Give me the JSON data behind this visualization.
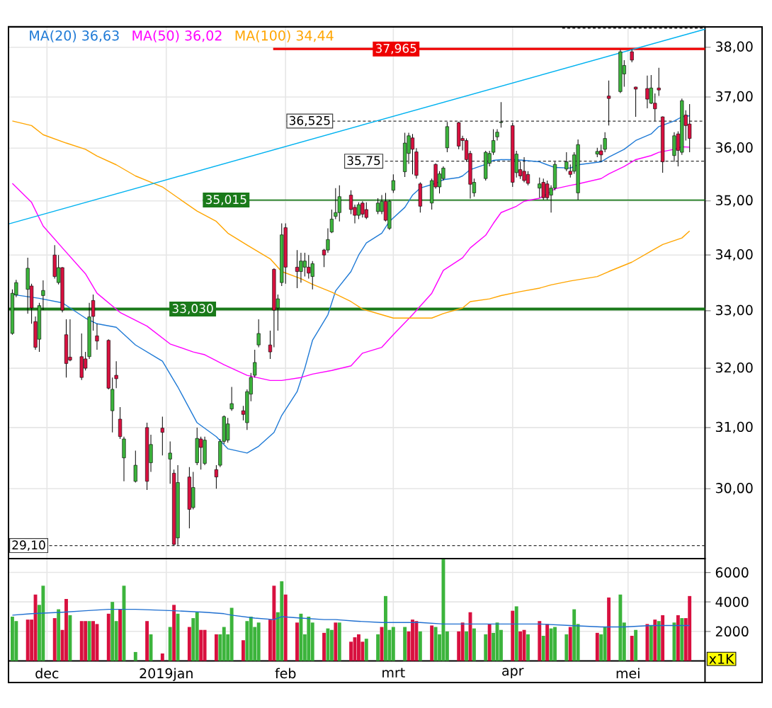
{
  "chart_data": [
    {
      "type": "candlestick",
      "x": [
        "2018-11-22",
        "2018-11-23",
        "2018-11-26",
        "2018-11-27",
        "2018-11-28",
        "2018-11-29",
        "2018-11-30",
        "2018-12-03",
        "2018-12-04",
        "2018-12-05",
        "2018-12-06",
        "2018-12-07",
        "2018-12-10",
        "2018-12-11",
        "2018-12-12",
        "2018-12-13",
        "2018-12-14",
        "2018-12-17",
        "2018-12-18",
        "2018-12-19",
        "2018-12-20",
        "2018-12-21",
        "2018-12-24",
        "2018-12-27",
        "2018-12-28",
        "2018-12-31",
        "2019-01-02",
        "2019-01-03",
        "2019-01-04",
        "2019-01-07",
        "2019-01-08",
        "2019-01-09",
        "2019-01-10",
        "2019-01-11",
        "2019-01-14",
        "2019-01-15",
        "2019-01-16",
        "2019-01-17",
        "2019-01-18",
        "2019-01-21",
        "2019-01-22",
        "2019-01-23",
        "2019-01-24",
        "2019-01-25",
        "2019-01-28",
        "2019-01-29",
        "2019-01-30",
        "2019-01-31",
        "2019-02-01",
        "2019-02-04",
        "2019-02-05",
        "2019-02-06",
        "2019-02-07",
        "2019-02-08",
        "2019-02-11",
        "2019-02-12",
        "2019-02-13",
        "2019-02-14",
        "2019-02-15",
        "2019-02-18",
        "2019-02-19",
        "2019-02-20",
        "2019-02-21",
        "2019-02-22",
        "2019-02-25",
        "2019-02-26",
        "2019-02-27",
        "2019-02-28",
        "2019-03-01",
        "2019-03-04",
        "2019-03-05",
        "2019-03-06",
        "2019-03-07",
        "2019-03-08",
        "2019-03-11",
        "2019-03-12",
        "2019-03-13",
        "2019-03-14",
        "2019-03-15",
        "2019-03-18",
        "2019-03-19",
        "2019-03-20",
        "2019-03-21",
        "2019-03-22",
        "2019-03-25",
        "2019-03-26",
        "2019-03-27",
        "2019-03-28",
        "2019-03-29",
        "2019-04-01",
        "2019-04-02",
        "2019-04-03",
        "2019-04-04",
        "2019-04-05",
        "2019-04-08",
        "2019-04-09",
        "2019-04-10",
        "2019-04-11",
        "2019-04-12",
        "2019-04-15",
        "2019-04-16",
        "2019-04-17",
        "2019-04-18",
        "2019-04-23",
        "2019-04-24",
        "2019-04-25",
        "2019-04-26",
        "2019-04-29",
        "2019-04-30",
        "2019-05-02",
        "2019-05-03",
        "2019-05-06",
        "2019-05-07",
        "2019-05-08",
        "2019-05-09",
        "2019-05-10",
        "2019-05-13",
        "2019-05-14",
        "2019-05-15",
        "2019-05-16",
        "2019-05-17"
      ],
      "ohlc": [
        [
          32.6,
          33.38,
          32.58,
          33.31
        ],
        [
          33.28,
          33.55,
          33.24,
          33.5
        ],
        [
          33.38,
          33.95,
          32.95,
          33.76
        ],
        [
          33.44,
          33.48,
          32.77,
          33.05
        ],
        [
          32.81,
          32.9,
          32.32,
          32.36
        ],
        [
          32.5,
          33.14,
          32.28,
          33.09
        ],
        [
          33.27,
          33.54,
          33.01,
          33.36
        ],
        [
          34.0,
          34.18,
          33.57,
          33.61
        ],
        [
          33.5,
          34.0,
          33.47,
          33.77
        ],
        [
          33.77,
          33.78,
          32.97,
          33.01
        ],
        [
          32.58,
          32.85,
          31.84,
          32.08
        ],
        [
          32.19,
          32.85,
          32.12,
          32.14
        ],
        [
          32.2,
          32.6,
          31.8,
          31.84
        ],
        [
          32.16,
          32.28,
          31.96,
          32.0
        ],
        [
          32.2,
          33.14,
          32.16,
          32.89
        ],
        [
          33.18,
          33.29,
          32.65,
          32.9
        ],
        [
          32.56,
          32.77,
          32.32,
          32.47
        ],
        [
          32.48,
          32.5,
          31.64,
          31.66
        ],
        [
          31.28,
          31.84,
          30.92,
          31.64
        ],
        [
          31.88,
          32.12,
          31.66,
          31.82
        ],
        [
          31.14,
          31.34,
          30.81,
          30.85
        ],
        [
          30.5,
          30.85,
          30.12,
          30.81
        ],
        [
          30.12,
          30.62,
          30.1,
          30.38
        ],
        [
          31.0,
          31.08,
          29.98,
          30.12
        ],
        [
          30.42,
          30.88,
          30.27,
          30.72
        ],
        [
          30.99,
          31.18,
          30.54,
          30.92
        ],
        [
          30.48,
          30.77,
          30.08,
          30.58
        ],
        [
          30.25,
          30.31,
          29.1,
          29.12
        ],
        [
          29.22,
          30.38,
          29.11,
          30.1
        ],
        [
          30.19,
          30.35,
          29.37,
          29.67
        ],
        [
          29.7,
          30.27,
          29.67,
          30.02
        ],
        [
          30.42,
          31.0,
          30.38,
          30.82
        ],
        [
          30.81,
          30.85,
          30.31,
          30.67
        ],
        [
          30.41,
          30.85,
          30.38,
          30.79
        ],
        [
          30.31,
          30.38,
          30.0,
          30.19
        ],
        [
          30.38,
          30.81,
          30.35,
          30.77
        ],
        [
          30.77,
          31.2,
          30.73,
          31.18
        ],
        [
          30.79,
          31.16,
          30.75,
          31.06
        ],
        [
          31.31,
          31.68,
          31.28,
          31.4
        ],
        [
          31.28,
          31.36,
          31.12,
          31.22
        ],
        [
          31.08,
          31.64,
          30.96,
          31.6
        ],
        [
          31.56,
          31.92,
          31.44,
          31.84
        ],
        [
          31.88,
          32.32,
          31.84,
          32.1
        ],
        [
          32.4,
          32.85,
          32.36,
          32.6
        ],
        [
          32.4,
          32.65,
          32.16,
          32.28
        ],
        [
          33.74,
          33.76,
          32.36,
          33.01
        ],
        [
          33.05,
          33.29,
          32.65,
          33.21
        ],
        [
          33.5,
          34.58,
          33.44,
          34.37
        ],
        [
          34.5,
          34.58,
          33.48,
          33.78
        ],
        [
          33.78,
          34.09,
          33.4,
          33.7
        ],
        [
          33.7,
          34.04,
          33.5,
          33.89
        ],
        [
          33.78,
          34.04,
          33.61,
          33.89
        ],
        [
          33.78,
          34.0,
          33.57,
          33.67
        ],
        [
          33.61,
          33.89,
          33.38,
          33.84
        ],
        [
          34.09,
          34.11,
          33.78,
          34.0
        ],
        [
          34.09,
          34.49,
          34.04,
          34.28
        ],
        [
          34.42,
          34.84,
          34.4,
          34.66
        ],
        [
          34.71,
          35.24,
          34.66,
          34.78
        ],
        [
          34.78,
          35.29,
          34.62,
          35.08
        ],
        [
          35.11,
          35.2,
          34.75,
          34.84
        ],
        [
          34.88,
          34.93,
          34.58,
          34.73
        ],
        [
          34.73,
          34.97,
          34.66,
          34.93
        ],
        [
          34.96,
          34.99,
          34.69,
          34.75
        ],
        [
          34.84,
          34.97,
          34.66,
          34.69
        ],
        [
          34.8,
          35.05,
          34.75,
          34.96
        ],
        [
          34.8,
          35.11,
          34.75,
          34.99
        ],
        [
          34.99,
          35.15,
          34.62,
          34.64
        ],
        [
          34.49,
          35.02,
          34.46,
          34.99
        ],
        [
          35.2,
          35.5,
          35.15,
          35.38
        ],
        [
          35.55,
          36.3,
          35.45,
          36.1
        ],
        [
          35.9,
          36.3,
          35.7,
          36.24
        ],
        [
          36.2,
          36.28,
          35.5,
          35.98
        ],
        [
          35.93,
          36.0,
          35.42,
          35.48
        ],
        [
          35.32,
          35.35,
          34.78,
          34.9
        ],
        [
          34.96,
          35.42,
          34.84,
          35.38
        ],
        [
          35.69,
          35.71,
          35.23,
          35.26
        ],
        [
          35.26,
          35.56,
          35.14,
          35.51
        ],
        [
          35.42,
          35.65,
          35.38,
          35.62
        ],
        [
          36.01,
          36.51,
          35.92,
          36.42
        ],
        [
          36.5,
          36.52,
          35.98,
          36.04
        ],
        [
          36.19,
          36.24,
          35.96,
          36.15
        ],
        [
          36.15,
          36.19,
          35.74,
          35.78
        ],
        [
          35.9,
          35.95,
          35.04,
          35.31
        ],
        [
          35.15,
          35.42,
          35.08,
          35.35
        ],
        [
          35.42,
          35.95,
          35.38,
          35.92
        ],
        [
          35.71,
          35.95,
          35.65,
          35.9
        ],
        [
          35.92,
          36.37,
          35.87,
          36.15
        ],
        [
          36.22,
          36.37,
          36.15,
          36.31
        ],
        [
          36.5,
          36.9,
          36.4,
          36.51
        ],
        [
          36.44,
          36.5,
          35.26,
          35.35
        ],
        [
          35.53,
          35.95,
          35.44,
          35.89
        ],
        [
          35.59,
          35.74,
          35.41,
          35.47
        ],
        [
          35.56,
          35.83,
          35.35,
          35.38
        ],
        [
          35.5,
          35.56,
          35.29,
          35.33
        ],
        [
          35.24,
          35.44,
          35.06,
          35.32
        ],
        [
          35.35,
          35.42,
          35.02,
          35.06
        ],
        [
          35.32,
          35.38,
          35.02,
          35.06
        ],
        [
          35.11,
          35.29,
          34.78,
          35.24
        ],
        [
          35.24,
          35.74,
          35.2,
          35.69
        ],
        [
          35.6,
          35.92,
          35.56,
          35.74
        ],
        [
          35.56,
          35.69,
          35.44,
          35.5
        ],
        [
          35.56,
          35.92,
          35.51,
          35.87
        ],
        [
          35.15,
          36.17,
          35.02,
          36.07
        ],
        [
          35.89,
          36.01,
          35.83,
          35.94
        ],
        [
          35.95,
          36.07,
          35.74,
          35.87
        ],
        [
          35.98,
          36.31,
          35.92,
          36.19
        ],
        [
          37.02,
          37.33,
          36.44,
          36.97
        ],
        [
          37.11,
          37.95,
          37.08,
          37.91
        ],
        [
          37.46,
          37.74,
          37.21,
          37.63
        ],
        [
          37.91,
          37.96,
          37.7,
          37.74
        ],
        [
          37.2,
          37.21,
          36.61,
          37.16
        ],
        [
          37.17,
          37.43,
          36.78,
          36.96
        ],
        [
          36.88,
          37.44,
          36.86,
          37.18
        ],
        [
          36.88,
          37.07,
          36.53,
          36.77
        ],
        [
          37.18,
          37.58,
          37.02,
          37.14
        ],
        [
          36.61,
          36.62,
          35.53,
          35.74
        ],
        [
          35.86,
          36.31,
          35.74,
          36.24
        ],
        [
          36.28,
          36.33,
          35.65,
          35.96
        ],
        [
          35.92,
          36.97,
          35.87,
          36.93
        ],
        [
          36.65,
          36.74,
          36.15,
          36.44
        ],
        [
          36.47,
          36.86,
          35.92,
          36.19
        ]
      ],
      "colors": [
        "#3cb43c",
        "#3cb43c",
        "#3cb43c",
        "#d8103f",
        "#d8103f",
        "#3cb43c",
        "#3cb43c",
        "#d8103f",
        "#3cb43c",
        "#d8103f",
        "#d8103f",
        "#d8103f",
        "#d8103f",
        "#d8103f",
        "#3cb43c",
        "#d8103f",
        "#d8103f",
        "#d8103f",
        "#3cb43c",
        "#d8103f",
        "#d8103f",
        "#3cb43c",
        "#3cb43c",
        "#d8103f",
        "#3cb43c",
        "#d8103f",
        "#3cb43c",
        "#d8103f",
        "#3cb43c",
        "#d8103f",
        "#3cb43c",
        "#3cb43c",
        "#d8103f",
        "#3cb43c",
        "#d8103f",
        "#3cb43c",
        "#3cb43c",
        "#3cb43c",
        "#3cb43c",
        "#d8103f",
        "#3cb43c",
        "#3cb43c",
        "#3cb43c",
        "#3cb43c",
        "#d8103f",
        "#d8103f",
        "#3cb43c",
        "#3cb43c",
        "#d8103f",
        "#d8103f",
        "#3cb43c",
        "#3cb43c",
        "#d8103f",
        "#3cb43c",
        "#d8103f",
        "#3cb43c",
        "#3cb43c",
        "#3cb43c",
        "#3cb43c",
        "#d8103f",
        "#d8103f",
        "#3cb43c",
        "#d8103f",
        "#d8103f",
        "#3cb43c",
        "#3cb43c",
        "#d8103f",
        "#3cb43c",
        "#3cb43c",
        "#3cb43c",
        "#3cb43c",
        "#d8103f",
        "#d8103f",
        "#d8103f",
        "#3cb43c",
        "#d8103f",
        "#3cb43c",
        "#3cb43c",
        "#3cb43c",
        "#d8103f",
        "#d8103f",
        "#d8103f",
        "#d8103f",
        "#3cb43c",
        "#3cb43c",
        "#3cb43c",
        "#3cb43c",
        "#3cb43c",
        "#3cb43c",
        "#d8103f",
        "#3cb43c",
        "#d8103f",
        "#d8103f",
        "#d8103f",
        "#3cb43c",
        "#d8103f",
        "#d8103f",
        "#3cb43c",
        "#3cb43c",
        "#3cb43c",
        "#d8103f",
        "#3cb43c",
        "#3cb43c",
        "#3cb43c",
        "#d8103f",
        "#3cb43c",
        "#d8103f",
        "#3cb43c",
        "#3cb43c",
        "#d8103f",
        "#d8103f",
        "#d8103f",
        "#3cb43c",
        "#d8103f",
        "#d8103f",
        "#d8103f",
        "#3cb43c",
        "#d8103f",
        "#3cb43c",
        "#d8103f",
        "#d8103f"
      ],
      "series": [
        {
          "name": "MA(20) 36,63",
          "type": "line",
          "color": "#1f7ad6",
          "x": [
            "2018-11-22",
            "2018-11-29",
            "2018-12-05",
            "2018-12-11",
            "2018-12-14",
            "2018-12-19",
            "2018-12-24",
            "2018-12-31",
            "2019-01-04",
            "2019-01-09",
            "2019-01-14",
            "2019-01-17",
            "2019-01-22",
            "2019-01-25",
            "2019-01-29",
            "2019-01-31",
            "2019-02-04",
            "2019-02-06",
            "2019-02-08",
            "2019-02-12",
            "2019-02-14",
            "2019-02-18",
            "2019-02-20",
            "2019-02-22",
            "2019-02-26",
            "2019-02-28",
            "2019-03-04",
            "2019-03-06",
            "2019-03-08",
            "2019-03-12",
            "2019-03-14",
            "2019-03-18",
            "2019-03-19",
            "2019-03-21",
            "2019-03-25",
            "2019-03-27",
            "2019-03-29",
            "2019-04-02",
            "2019-04-04",
            "2019-04-08",
            "2019-04-10",
            "2019-04-12",
            "2019-04-16",
            "2019-04-18",
            "2019-04-24",
            "2019-04-26",
            "2019-04-30",
            "2019-05-03",
            "2019-05-07",
            "2019-05-09",
            "2019-05-13",
            "2019-05-15",
            "2019-05-17"
          ],
          "values": [
            33.29,
            33.22,
            33.14,
            32.87,
            32.77,
            32.71,
            32.4,
            32.12,
            31.68,
            31.08,
            30.85,
            30.65,
            30.58,
            30.69,
            30.92,
            31.2,
            31.6,
            32.0,
            32.48,
            32.93,
            33.35,
            33.7,
            34.0,
            34.22,
            34.4,
            34.62,
            34.88,
            35.11,
            35.24,
            35.33,
            35.4,
            35.44,
            35.47,
            35.59,
            35.69,
            35.77,
            35.78,
            35.78,
            35.77,
            35.74,
            35.68,
            35.63,
            35.62,
            35.68,
            35.74,
            35.83,
            35.98,
            36.15,
            36.28,
            36.42,
            36.53,
            36.61,
            36.63
          ]
        },
        {
          "name": "MA(50) 36,02",
          "type": "line",
          "color": "#ff00ff",
          "x": [
            "2018-11-22",
            "2018-11-27",
            "2018-11-30",
            "2018-12-05",
            "2018-12-11",
            "2018-12-14",
            "2018-12-20",
            "2018-12-27",
            "2019-01-02",
            "2019-01-08",
            "2019-01-11",
            "2019-01-16",
            "2019-01-22",
            "2019-01-28",
            "2019-01-31",
            "2019-02-05",
            "2019-02-08",
            "2019-02-13",
            "2019-02-18",
            "2019-02-21",
            "2019-02-26",
            "2019-03-01",
            "2019-03-06",
            "2019-03-11",
            "2019-03-14",
            "2019-03-19",
            "2019-03-21",
            "2019-03-25",
            "2019-03-27",
            "2019-03-29",
            "2019-04-02",
            "2019-04-04",
            "2019-04-08",
            "2019-04-10",
            "2019-04-12",
            "2019-04-16",
            "2019-04-18",
            "2019-04-24",
            "2019-04-26",
            "2019-04-30",
            "2019-05-03",
            "2019-05-07",
            "2019-05-09",
            "2019-05-13",
            "2019-05-15",
            "2019-05-17"
          ],
          "values": [
            35.33,
            34.97,
            34.53,
            34.13,
            33.66,
            33.31,
            32.97,
            32.73,
            32.42,
            32.28,
            32.23,
            32.06,
            31.88,
            31.79,
            31.79,
            31.84,
            31.9,
            31.96,
            32.04,
            32.26,
            32.36,
            32.58,
            32.93,
            33.31,
            33.72,
            33.95,
            34.13,
            34.36,
            34.58,
            34.78,
            34.9,
            34.99,
            35.05,
            35.13,
            35.23,
            35.29,
            35.32,
            35.42,
            35.51,
            35.65,
            35.78,
            35.86,
            35.92,
            35.98,
            36.03,
            36.02
          ]
        },
        {
          "name": "MA(100) 34,44",
          "type": "line",
          "color": "#ffa500",
          "x": [
            "2018-11-22",
            "2018-11-27",
            "2018-11-30",
            "2018-12-06",
            "2018-12-11",
            "2018-12-14",
            "2018-12-19",
            "2018-12-24",
            "2018-12-31",
            "2019-01-04",
            "2019-01-09",
            "2019-01-14",
            "2019-01-17",
            "2019-01-22",
            "2019-01-28",
            "2019-01-31",
            "2019-02-05",
            "2019-02-08",
            "2019-02-13",
            "2019-02-18",
            "2019-02-21",
            "2019-02-26",
            "2019-03-01",
            "2019-03-06",
            "2019-03-11",
            "2019-03-14",
            "2019-03-19",
            "2019-03-21",
            "2019-03-26",
            "2019-03-29",
            "2019-04-03",
            "2019-04-08",
            "2019-04-11",
            "2019-04-16",
            "2019-04-23",
            "2019-04-26",
            "2019-05-02",
            "2019-05-07",
            "2019-05-10",
            "2019-05-15",
            "2019-05-17"
          ],
          "values": [
            36.53,
            36.44,
            36.26,
            36.1,
            35.98,
            35.85,
            35.68,
            35.47,
            35.26,
            35.06,
            34.81,
            34.62,
            34.4,
            34.18,
            33.93,
            33.7,
            33.57,
            33.47,
            33.33,
            33.16,
            33.03,
            32.93,
            32.87,
            32.87,
            32.87,
            32.95,
            33.05,
            33.16,
            33.21,
            33.27,
            33.34,
            33.4,
            33.46,
            33.53,
            33.61,
            33.7,
            33.87,
            34.07,
            34.19,
            34.31,
            34.44
          ]
        },
        {
          "type": "line",
          "color": "#00b2f0",
          "x": [
            "2018-11-21",
            "2019-05-21"
          ],
          "values": [
            34.57,
            38.37
          ]
        }
      ],
      "xlim": [
        "2018-11-21",
        "2019-05-21"
      ],
      "xticks": [
        {
          "value": "2018-12-01",
          "label": null
        },
        {
          "value": "2019-01-01",
          "label": null
        },
        {
          "value": "2019-02-01",
          "label": null
        },
        {
          "value": "2019-03-01",
          "label": null
        },
        {
          "value": "2019-04-01",
          "label": null
        },
        {
          "value": "2019-05-01",
          "label": null
        }
      ],
      "ylim": [
        28.9,
        38.42
      ],
      "yticks": [
        {
          "value": 30,
          "label": "30,00"
        },
        {
          "value": 31,
          "label": "31,00"
        },
        {
          "value": 32,
          "label": "32,00"
        },
        {
          "value": 33,
          "label": "33,00"
        },
        {
          "value": 34,
          "label": "34,00"
        },
        {
          "value": 35,
          "label": "35,00"
        },
        {
          "value": 36,
          "label": "36,00"
        },
        {
          "value": 37,
          "label": "37,00"
        },
        {
          "value": 38,
          "label": "38,00"
        }
      ],
      "log": true,
      "grid": true,
      "legend": "top left",
      "tick_labels": "y",
      "ref_lines": [
        {
          "axis": "y",
          "value": 37.965,
          "label": "37,965",
          "color": "#ee0000"
        },
        {
          "axis": "y",
          "value": 36.525,
          "label": "36,525",
          "color": "#333333",
          "line_style": "dashed"
        },
        {
          "axis": "y",
          "value": 35.75,
          "label": "35,75",
          "color": "#333333",
          "line_style": "dashed"
        },
        {
          "axis": "y",
          "value": 35.015,
          "label": "35,015",
          "color": "#1a7a1a"
        },
        {
          "axis": "y",
          "value": 33.03,
          "label": "33,030",
          "color": "#1a7a1a"
        },
        {
          "axis": "y",
          "value": 29.1,
          "label": "29,10",
          "color": "#333333",
          "line_style": "dashed"
        },
        {
          "axis": "y",
          "value": 38.39,
          "color": "#333333",
          "line_style": "dashed"
        }
      ]
    },
    {
      "type": "bar",
      "x": [
        "2018-11-22",
        "2018-11-23",
        "2018-11-26",
        "2018-11-27",
        "2018-11-28",
        "2018-11-29",
        "2018-11-30",
        "2018-12-03",
        "2018-12-04",
        "2018-12-05",
        "2018-12-06",
        "2018-12-07",
        "2018-12-10",
        "2018-12-11",
        "2018-12-12",
        "2018-12-13",
        "2018-12-14",
        "2018-12-17",
        "2018-12-18",
        "2018-12-19",
        "2018-12-20",
        "2018-12-21",
        "2018-12-24",
        "2018-12-27",
        "2018-12-28",
        "2018-12-31",
        "2019-01-02",
        "2019-01-03",
        "2019-01-04",
        "2019-01-07",
        "2019-01-08",
        "2019-01-09",
        "2019-01-10",
        "2019-01-11",
        "2019-01-14",
        "2019-01-15",
        "2019-01-16",
        "2019-01-17",
        "2019-01-18",
        "2019-01-21",
        "2019-01-22",
        "2019-01-23",
        "2019-01-24",
        "2019-01-25",
        "2019-01-28",
        "2019-01-29",
        "2019-01-30",
        "2019-01-31",
        "2019-02-01",
        "2019-02-04",
        "2019-02-05",
        "2019-02-06",
        "2019-02-07",
        "2019-02-08",
        "2019-02-11",
        "2019-02-12",
        "2019-02-13",
        "2019-02-14",
        "2019-02-15",
        "2019-02-18",
        "2019-02-19",
        "2019-02-20",
        "2019-02-21",
        "2019-02-22",
        "2019-02-25",
        "2019-02-26",
        "2019-02-27",
        "2019-02-28",
        "2019-03-01",
        "2019-03-04",
        "2019-03-05",
        "2019-03-06",
        "2019-03-07",
        "2019-03-08",
        "2019-03-11",
        "2019-03-12",
        "2019-03-13",
        "2019-03-14",
        "2019-03-15",
        "2019-03-18",
        "2019-03-19",
        "2019-03-20",
        "2019-03-21",
        "2019-03-22",
        "2019-03-25",
        "2019-03-26",
        "2019-03-27",
        "2019-03-28",
        "2019-03-29",
        "2019-04-01",
        "2019-04-02",
        "2019-04-03",
        "2019-04-04",
        "2019-04-05",
        "2019-04-08",
        "2019-04-09",
        "2019-04-10",
        "2019-04-11",
        "2019-04-12",
        "2019-04-15",
        "2019-04-16",
        "2019-04-17",
        "2019-04-18",
        "2019-04-23",
        "2019-04-24",
        "2019-04-25",
        "2019-04-26",
        "2019-04-29",
        "2019-04-30",
        "2019-05-02",
        "2019-05-03",
        "2019-05-06",
        "2019-05-07",
        "2019-05-08",
        "2019-05-09",
        "2019-05-10",
        "2019-05-13",
        "2019-05-14",
        "2019-05-15",
        "2019-05-16",
        "2019-05-17"
      ],
      "series": [
        {
          "type": "bar",
          "values": [
            3000,
            2700,
            2800,
            2800,
            4500,
            3800,
            5100,
            2900,
            3500,
            2100,
            4200,
            3100,
            2700,
            2700,
            2700,
            2700,
            2500,
            3200,
            4000,
            2700,
            3500,
            5100,
            600,
            2700,
            1800,
            500,
            2300,
            3800,
            3200,
            2300,
            2900,
            3300,
            2100,
            2100,
            1800,
            1800,
            2300,
            1800,
            3600,
            1400,
            2700,
            3000,
            2300,
            2600,
            2800,
            5100,
            3300,
            5400,
            4500,
            2600,
            3200,
            1800,
            3000,
            2600,
            1900,
            2200,
            2100,
            2600,
            2600,
            1300,
            1600,
            1800,
            1300,
            1500,
            1800,
            2300,
            4400,
            2100,
            2300,
            2300,
            2000,
            2800,
            2700,
            2000,
            2400,
            2300,
            1800,
            6900,
            2000,
            2000,
            2600,
            2000,
            3300,
            2200,
            1800,
            2500,
            1900,
            2600,
            2100,
            3400,
            3700,
            2000,
            2100,
            1800,
            2700,
            1700,
            2500,
            2200,
            2300,
            1800,
            2300,
            3500,
            2500,
            1900,
            1800,
            2300,
            4300,
            4500,
            2600,
            1700,
            2100,
            2500,
            2400,
            2800,
            2700,
            3100,
            2600,
            3100,
            2900,
            2900,
            4400
          ],
          "colors": [
            "#3cb43c",
            "#3cb43c",
            "#d8103f",
            "#d8103f",
            "#d8103f",
            "#3cb43c",
            "#3cb43c",
            "#d8103f",
            "#3cb43c",
            "#d8103f",
            "#d8103f",
            "#3cb43c",
            "#d8103f",
            "#d8103f",
            "#3cb43c",
            "#d8103f",
            "#d8103f",
            "#d8103f",
            "#3cb43c",
            "#3cb43c",
            "#d8103f",
            "#3cb43c",
            "#3cb43c",
            "#d8103f",
            "#3cb43c",
            "#d8103f",
            "#3cb43c",
            "#d8103f",
            "#3cb43c",
            "#d8103f",
            "#3cb43c",
            "#3cb43c",
            "#d8103f",
            "#d8103f",
            "#d8103f",
            "#3cb43c",
            "#3cb43c",
            "#3cb43c",
            "#3cb43c",
            "#d8103f",
            "#3cb43c",
            "#3cb43c",
            "#3cb43c",
            "#3cb43c",
            "#d8103f",
            "#d8103f",
            "#3cb43c",
            "#3cb43c",
            "#d8103f",
            "#d8103f",
            "#3cb43c",
            "#3cb43c",
            "#3cb43c",
            "#3cb43c",
            "#d8103f",
            "#3cb43c",
            "#3cb43c",
            "#d8103f",
            "#3cb43c",
            "#d8103f",
            "#d8103f",
            "#d8103f",
            "#d8103f",
            "#3cb43c",
            "#3cb43c",
            "#d8103f",
            "#3cb43c",
            "#3cb43c",
            "#3cb43c",
            "#3cb43c",
            "#d8103f",
            "#d8103f",
            "#d8103f",
            "#3cb43c",
            "#d8103f",
            "#3cb43c",
            "#3cb43c",
            "#3cb43c",
            "#3cb43c",
            "#d8103f",
            "#d8103f",
            "#3cb43c",
            "#d8103f",
            "#3cb43c",
            "#3cb43c",
            "#d8103f",
            "#3cb43c",
            "#3cb43c",
            "#3cb43c",
            "#d8103f",
            "#3cb43c",
            "#d8103f",
            "#d8103f",
            "#3cb43c",
            "#d8103f",
            "#3cb43c",
            "#d8103f",
            "#3cb43c",
            "#3cb43c",
            "#3cb43c",
            "#d8103f",
            "#3cb43c",
            "#3cb43c",
            "#d8103f",
            "#3cb43c",
            "#3cb43c",
            "#d8103f",
            "#3cb43c",
            "#3cb43c",
            "#d8103f",
            "#3cb43c",
            "#d8103f",
            "#3cb43c",
            "#d8103f",
            "#3cb43c",
            "#d8103f",
            "#3cb43c",
            "#d8103f",
            "#3cb43c",
            "#d8103f",
            "#d8103f"
          ]
        },
        {
          "type": "line",
          "color": "#1f6fd0",
          "x": [
            "2018-11-22",
            "2018-11-27",
            "2018-12-05",
            "2018-12-11",
            "2018-12-17",
            "2018-12-24",
            "2019-01-03",
            "2019-01-11",
            "2019-01-16",
            "2019-01-18",
            "2019-01-24",
            "2019-01-29",
            "2019-01-31",
            "2019-02-05",
            "2019-02-11",
            "2019-02-14",
            "2019-02-19",
            "2019-02-26",
            "2019-03-01",
            "2019-03-08",
            "2019-03-14",
            "2019-03-21",
            "2019-03-29",
            "2019-04-08",
            "2019-04-16",
            "2019-04-24",
            "2019-04-30",
            "2019-05-07",
            "2019-05-13",
            "2019-05-17"
          ],
          "values": [
            3100,
            3200,
            3300,
            3400,
            3500,
            3500,
            3400,
            3300,
            3200,
            3100,
            2900,
            2800,
            3000,
            2900,
            2800,
            2800,
            2700,
            2600,
            2600,
            2600,
            2500,
            2500,
            2500,
            2500,
            2400,
            2300,
            2300,
            2400,
            2400,
            2400
          ]
        }
      ],
      "xlim": [
        "2018-11-21",
        "2019-05-21"
      ],
      "xticks": [
        {
          "value": "2018-12-01",
          "label": "dec"
        },
        {
          "value": "2019-01-01",
          "label": "2019jan"
        },
        {
          "value": "2019-02-01",
          "label": "feb"
        },
        {
          "value": "2019-03-01",
          "label": "mrt"
        },
        {
          "value": "2019-04-01",
          "label": "apr"
        },
        {
          "value": "2019-05-01",
          "label": "mei"
        }
      ],
      "ylim": [
        0,
        6940
      ],
      "yticks": [
        2000,
        4000,
        6000
      ],
      "ylabel": "x1K",
      "grid": true
    }
  ]
}
